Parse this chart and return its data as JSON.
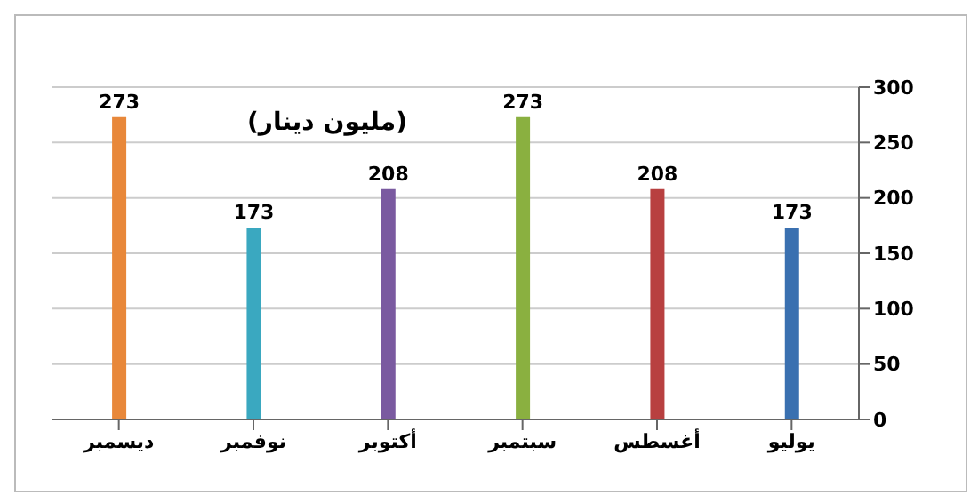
{
  "chart_data": {
    "type": "bar",
    "annotations": [
      "(مليون دينار)"
    ],
    "categories": [
      "ديسمبر",
      "نوفمبر",
      "أكتوبر",
      "سبتمبر",
      "أغسطس",
      "يوليو"
    ],
    "values": [
      273,
      173,
      208,
      273,
      208,
      173
    ],
    "colors": [
      "#e8883a",
      "#3aa8c0",
      "#7a5aa0",
      "#8ab040",
      "#b84040",
      "#3a70b0"
    ],
    "ylim": [
      0,
      300
    ],
    "yticks": [
      0,
      50,
      100,
      150,
      200,
      250,
      300
    ],
    "grid": "y",
    "data_labels": true
  }
}
